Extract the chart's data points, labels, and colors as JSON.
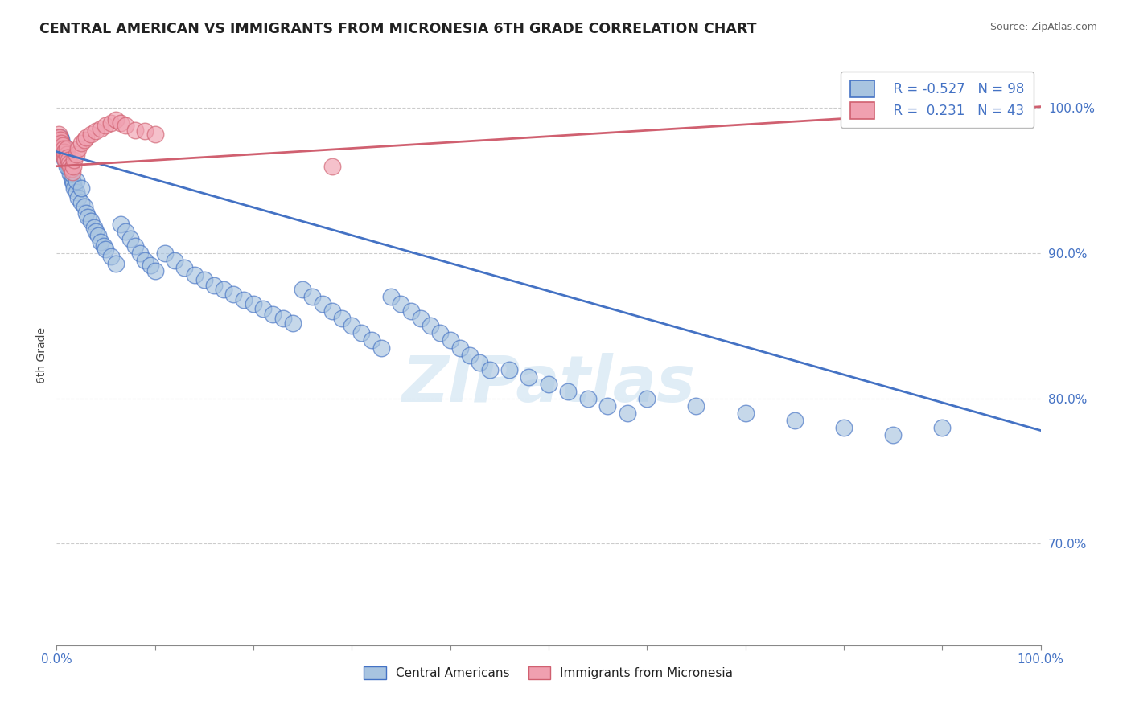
{
  "title": "CENTRAL AMERICAN VS IMMIGRANTS FROM MICRONESIA 6TH GRADE CORRELATION CHART",
  "source": "Source: ZipAtlas.com",
  "ylabel": "6th Grade",
  "color_blue": "#a8c4e0",
  "color_pink": "#f0a0b0",
  "edge_blue": "#4472c4",
  "edge_pink": "#d06070",
  "trendline_blue": "#4472c4",
  "trendline_pink": "#d06070",
  "legend_r_blue": "-0.527",
  "legend_n_blue": "98",
  "legend_r_pink": "0.231",
  "legend_n_pink": "43",
  "watermark": "ZIPatlas",
  "xlim": [
    0.0,
    1.0
  ],
  "ylim": [
    0.63,
    1.03
  ],
  "yticks": [
    0.7,
    0.8,
    0.9,
    1.0
  ],
  "blue_x": [
    0.002,
    0.003,
    0.004,
    0.004,
    0.005,
    0.005,
    0.006,
    0.006,
    0.007,
    0.007,
    0.008,
    0.008,
    0.009,
    0.01,
    0.01,
    0.011,
    0.012,
    0.013,
    0.014,
    0.015,
    0.016,
    0.017,
    0.018,
    0.02,
    0.022,
    0.025,
    0.028,
    0.03,
    0.032,
    0.035,
    0.038,
    0.04,
    0.042,
    0.045,
    0.048,
    0.05,
    0.055,
    0.06,
    0.065,
    0.07,
    0.075,
    0.08,
    0.085,
    0.09,
    0.095,
    0.1,
    0.11,
    0.12,
    0.13,
    0.14,
    0.15,
    0.16,
    0.17,
    0.18,
    0.19,
    0.2,
    0.21,
    0.22,
    0.23,
    0.24,
    0.25,
    0.26,
    0.27,
    0.28,
    0.29,
    0.3,
    0.31,
    0.32,
    0.33,
    0.34,
    0.35,
    0.36,
    0.37,
    0.38,
    0.39,
    0.4,
    0.41,
    0.42,
    0.43,
    0.44,
    0.46,
    0.48,
    0.5,
    0.52,
    0.54,
    0.56,
    0.58,
    0.6,
    0.65,
    0.7,
    0.75,
    0.8,
    0.85,
    0.9,
    0.01,
    0.015,
    0.02,
    0.025
  ],
  "blue_y": [
    0.98,
    0.975,
    0.975,
    0.98,
    0.972,
    0.978,
    0.97,
    0.975,
    0.968,
    0.972,
    0.965,
    0.97,
    0.967,
    0.965,
    0.968,
    0.963,
    0.96,
    0.958,
    0.955,
    0.952,
    0.95,
    0.948,
    0.945,
    0.942,
    0.938,
    0.935,
    0.932,
    0.928,
    0.925,
    0.922,
    0.918,
    0.915,
    0.912,
    0.908,
    0.905,
    0.903,
    0.898,
    0.893,
    0.92,
    0.915,
    0.91,
    0.905,
    0.9,
    0.895,
    0.892,
    0.888,
    0.9,
    0.895,
    0.89,
    0.885,
    0.882,
    0.878,
    0.875,
    0.872,
    0.868,
    0.865,
    0.862,
    0.858,
    0.855,
    0.852,
    0.875,
    0.87,
    0.865,
    0.86,
    0.855,
    0.85,
    0.845,
    0.84,
    0.835,
    0.87,
    0.865,
    0.86,
    0.855,
    0.85,
    0.845,
    0.84,
    0.835,
    0.83,
    0.825,
    0.82,
    0.82,
    0.815,
    0.81,
    0.805,
    0.8,
    0.795,
    0.79,
    0.8,
    0.795,
    0.79,
    0.785,
    0.78,
    0.775,
    0.78,
    0.96,
    0.955,
    0.95,
    0.945
  ],
  "pink_x": [
    0.001,
    0.002,
    0.002,
    0.003,
    0.003,
    0.004,
    0.004,
    0.005,
    0.005,
    0.006,
    0.006,
    0.007,
    0.007,
    0.008,
    0.008,
    0.009,
    0.01,
    0.01,
    0.011,
    0.012,
    0.013,
    0.014,
    0.015,
    0.016,
    0.017,
    0.018,
    0.02,
    0.022,
    0.025,
    0.028,
    0.03,
    0.035,
    0.04,
    0.045,
    0.05,
    0.055,
    0.06,
    0.065,
    0.07,
    0.08,
    0.09,
    0.1,
    0.28
  ],
  "pink_y": [
    0.98,
    0.978,
    0.982,
    0.976,
    0.98,
    0.974,
    0.978,
    0.972,
    0.976,
    0.97,
    0.974,
    0.968,
    0.972,
    0.966,
    0.97,
    0.964,
    0.968,
    0.972,
    0.966,
    0.964,
    0.962,
    0.96,
    0.958,
    0.956,
    0.96,
    0.964,
    0.968,
    0.972,
    0.976,
    0.978,
    0.98,
    0.982,
    0.984,
    0.986,
    0.988,
    0.99,
    0.992,
    0.99,
    0.988,
    0.985,
    0.984,
    0.982,
    0.96
  ],
  "blue_trend_x": [
    0.0,
    1.0
  ],
  "blue_trend_y": [
    0.97,
    0.778
  ],
  "pink_trend_x": [
    0.0,
    1.0
  ],
  "pink_trend_y": [
    0.96,
    1.001
  ]
}
